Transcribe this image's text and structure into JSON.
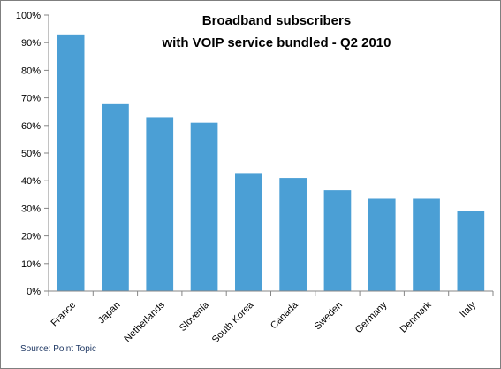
{
  "chart_data": {
    "type": "bar",
    "title_lines": [
      "Broadband subscribers",
      "with VOIP service bundled - Q2 2010"
    ],
    "categories": [
      "France",
      "Japan",
      "Netherlands",
      "Slovenia",
      "South Korea",
      "Canada",
      "Sweden",
      "Germany",
      "Denmark",
      "Italy"
    ],
    "values": [
      93,
      68,
      63,
      61,
      42.5,
      41,
      36.5,
      33.5,
      33.5,
      29
    ],
    "ylim": [
      0,
      100
    ],
    "ytick_labels": [
      "0%",
      "10%",
      "20%",
      "30%",
      "40%",
      "50%",
      "60%",
      "70%",
      "80%",
      "90%",
      "100%"
    ],
    "xlabel": "",
    "ylabel": "",
    "grid": false,
    "legend": "none",
    "bar_color": "#4b9fd5",
    "source": "Source: Point Topic"
  }
}
